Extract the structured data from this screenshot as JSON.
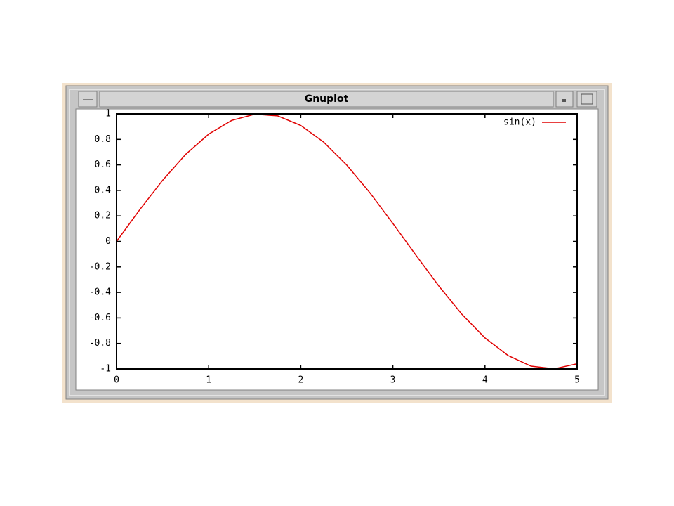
{
  "window": {
    "title": "Gnuplot"
  },
  "chart_data": {
    "type": "line",
    "x": [
      0,
      0.25,
      0.5,
      0.75,
      1,
      1.25,
      1.5,
      1.75,
      2,
      2.25,
      2.5,
      2.75,
      3,
      3.25,
      3.5,
      3.75,
      4,
      4.25,
      4.5,
      4.75,
      5
    ],
    "series": [
      {
        "name": "sin(x)",
        "color": "#e00000",
        "values": [
          0,
          0.247,
          0.479,
          0.682,
          0.841,
          0.949,
          0.997,
          0.984,
          0.909,
          0.778,
          0.598,
          0.382,
          0.141,
          -0.108,
          -0.351,
          -0.572,
          -0.757,
          -0.895,
          -0.978,
          -0.999,
          -0.959
        ]
      }
    ],
    "xlim": [
      0,
      5
    ],
    "xticks": [
      0,
      1,
      2,
      3,
      4,
      5
    ],
    "ylim": [
      -1,
      1
    ],
    "yticks": [
      -1,
      -0.8,
      -0.6,
      -0.4,
      -0.2,
      0,
      0.2,
      0.4,
      0.6,
      0.8,
      1
    ],
    "legend": "top-right"
  }
}
